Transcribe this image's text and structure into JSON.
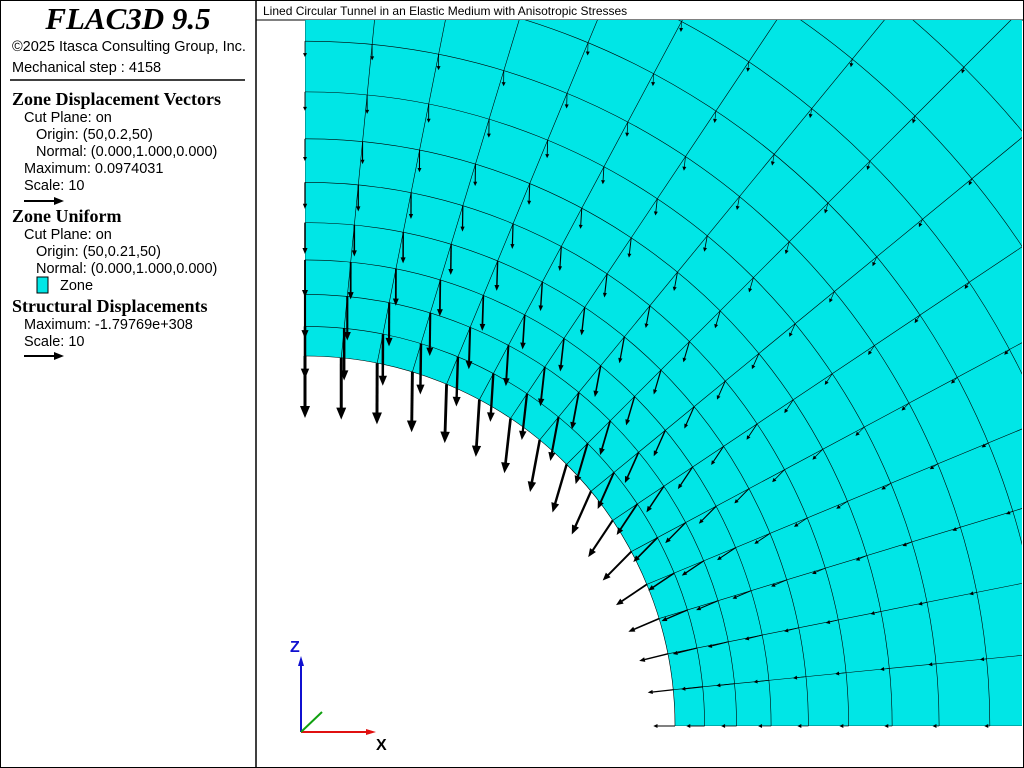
{
  "window": {
    "title": "Lined Circular Tunnel in an Elastic Medium with Anisotropic Stresses"
  },
  "legend": {
    "product": "FLAC3D 9.5",
    "copyright": "©2025 Itasca Consulting Group, Inc.",
    "step": "Mechanical step : 4158",
    "sections": [
      {
        "heading": "Zone Displacement Vectors",
        "lines": [
          "Cut Plane: on",
          "Origin: (50,0.2,50)",
          "Normal: (0.000,1.000,0.000)",
          "Maximum: 0.0974031",
          "Scale: 10"
        ]
      },
      {
        "heading": "Zone Uniform",
        "lines": [
          "Cut Plane: on",
          "Origin: (50,0.21,50)",
          "Normal: (0.000,1.000,0.000)",
          "Zone"
        ]
      },
      {
        "heading": "Structural Displacements",
        "lines": [
          "Maximum: -1.79769e+308",
          "Scale: 10"
        ]
      }
    ]
  },
  "axes": {
    "z": "Z",
    "x": "X"
  }
}
